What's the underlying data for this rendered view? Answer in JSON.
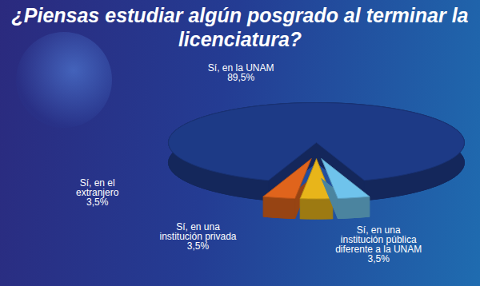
{
  "chart_data": {
    "type": "pie",
    "title": "¿Piensas estudiar algún posgrado al terminar la licenciatura?",
    "categories": [
      "Sí, en la UNAM",
      "Sí, en el extranjero",
      "Sí, en una institución privada",
      "Sí, en una institución pública diferente a la UNAM"
    ],
    "values": [
      89.5,
      3.5,
      3.5,
      3.5
    ],
    "value_labels": [
      "89,5%",
      "3,5%",
      "3,5%",
      "3,5%"
    ],
    "colors": [
      "#1d3a86",
      "#e0641c",
      "#e8b51a",
      "#6fc3ec"
    ],
    "data_labels": true,
    "tick_labels": false
  }
}
